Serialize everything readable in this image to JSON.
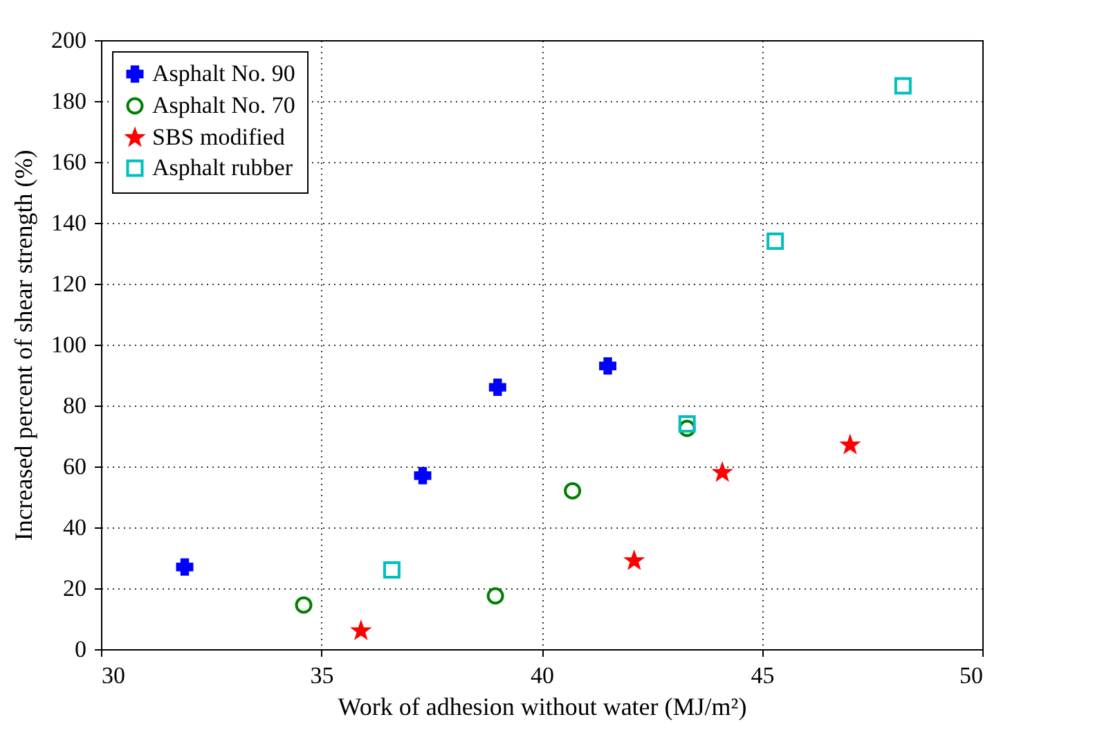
{
  "chart_data": {
    "type": "scatter",
    "xlabel": "Work of adhesion without water (MJ/m²)",
    "ylabel": "Increased percent of shear strength (%)",
    "xlim": [
      30,
      50
    ],
    "xticks": [
      30,
      35,
      40,
      45,
      50
    ],
    "ylim": [
      0,
      200
    ],
    "yticks": [
      0,
      20,
      40,
      60,
      80,
      100,
      120,
      140,
      160,
      180,
      200
    ],
    "grid": true,
    "legend": "top left",
    "series": [
      {
        "name": "Asphalt No. 90",
        "color": "#0000ff",
        "marker": "cross",
        "x": [
          31.9,
          37.3,
          39.0,
          41.5
        ],
        "values": [
          27,
          57,
          86,
          93
        ]
      },
      {
        "name": "Asphalt No. 70",
        "color": "#008000",
        "marker": "circle",
        "x": [
          34.6,
          38.95,
          40.7,
          43.3
        ],
        "values": [
          14.5,
          17.5,
          52,
          72.5
        ]
      },
      {
        "name": "SBS modified",
        "color": "#ff0000",
        "marker": "star",
        "x": [
          35.9,
          42.1,
          44.1,
          47.0
        ],
        "values": [
          6,
          29,
          58,
          67
        ]
      },
      {
        "name": "Asphalt rubber",
        "color": "#00bfbf",
        "marker": "square",
        "x": [
          36.6,
          43.3,
          45.3,
          48.2
        ],
        "values": [
          26,
          74,
          134,
          185
        ]
      }
    ]
  }
}
